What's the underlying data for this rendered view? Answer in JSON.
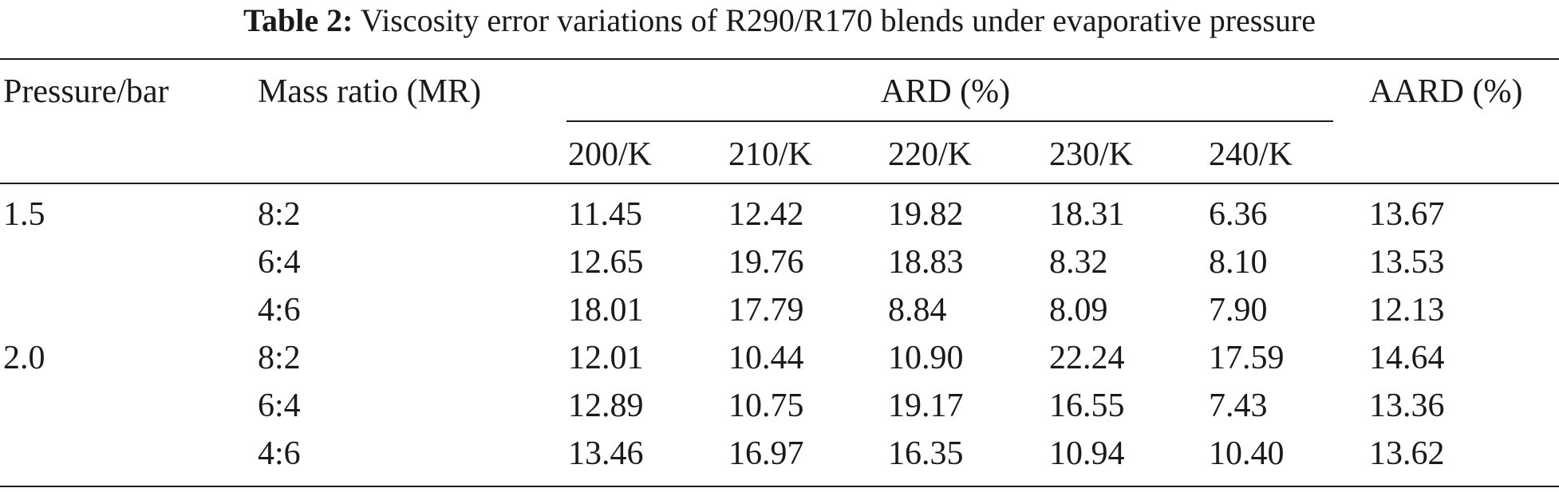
{
  "caption": {
    "label": "Table 2:",
    "text": "Viscosity error variations of R290/R170 blends under evaporative pressure"
  },
  "header": {
    "pressure": "Pressure/bar",
    "mass_ratio": "Mass ratio (MR)",
    "ard": "ARD (%)",
    "aard": "AARD (%)",
    "temps": [
      "200/K",
      "210/K",
      "220/K",
      "230/K",
      "240/K"
    ]
  },
  "rows": [
    {
      "pressure": "1.5",
      "mr": "8:2",
      "ard": [
        "11.45",
        "12.42",
        "19.82",
        "18.31",
        "6.36"
      ],
      "aard": "13.67"
    },
    {
      "pressure": "",
      "mr": "6:4",
      "ard": [
        "12.65",
        "19.76",
        "18.83",
        "8.32",
        "8.10"
      ],
      "aard": "13.53"
    },
    {
      "pressure": "",
      "mr": "4:6",
      "ard": [
        "18.01",
        "17.79",
        "8.84",
        "8.09",
        "7.90"
      ],
      "aard": "12.13"
    },
    {
      "pressure": "2.0",
      "mr": "8:2",
      "ard": [
        "12.01",
        "10.44",
        "10.90",
        "22.24",
        "17.59"
      ],
      "aard": "14.64"
    },
    {
      "pressure": "",
      "mr": "6:4",
      "ard": [
        "12.89",
        "10.75",
        "19.17",
        "16.55",
        "7.43"
      ],
      "aard": "13.36"
    },
    {
      "pressure": "",
      "mr": "4:6",
      "ard": [
        "13.46",
        "16.97",
        "16.35",
        "10.94",
        "10.40"
      ],
      "aard": "13.62"
    }
  ]
}
